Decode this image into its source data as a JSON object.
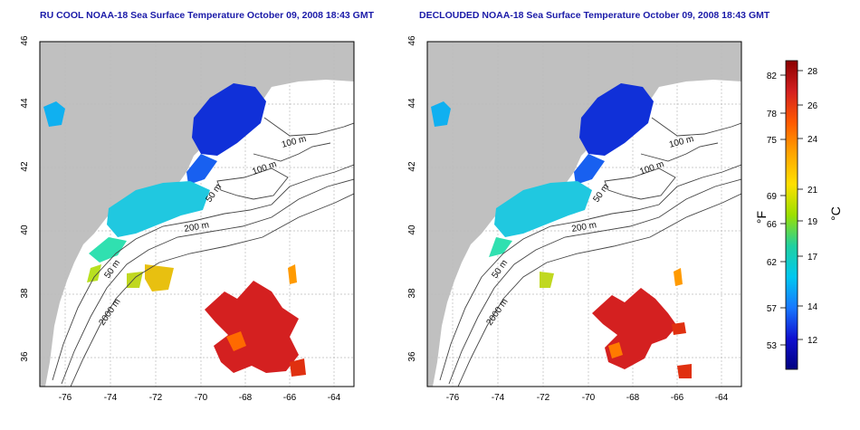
{
  "panels": [
    {
      "title": "RU COOL NOAA-18 Sea Surface Temperature October 09, 2008 18:43 GMT",
      "x_ticks": [
        "-76",
        "-74",
        "-72",
        "-70",
        "-68",
        "-66",
        "-64"
      ],
      "y_ticks": [
        "46",
        "44",
        "42",
        "40",
        "38",
        "36"
      ],
      "contour_labels": [
        "100 m",
        "100 m",
        "50 m",
        "200 m",
        "50 m",
        "2000 m"
      ]
    },
    {
      "title": "DECLOUDED NOAA-18 Sea Surface Temperature October 09, 2008 18:43 GMT",
      "x_ticks": [
        "-76",
        "-74",
        "-72",
        "-70",
        "-68",
        "-66",
        "-64"
      ],
      "y_ticks": [
        "46",
        "44",
        "42",
        "40",
        "38",
        "36"
      ],
      "contour_labels": [
        "100 m",
        "100 m",
        "50 m",
        "200 m",
        "50 m",
        "2000 m"
      ]
    }
  ],
  "colorbar": {
    "f_label": "°F",
    "c_label": "°C",
    "f_ticks": [
      "82",
      "78",
      "75",
      "69",
      "66",
      "62",
      "57",
      "53"
    ],
    "c_ticks": [
      "28",
      "26",
      "24",
      "21",
      "19",
      "17",
      "14",
      "12"
    ],
    "colors": [
      "#8b0000",
      "#d42020",
      "#ff5a00",
      "#ffa500",
      "#ffe000",
      "#9be000",
      "#20d0a0",
      "#00c8f0",
      "#1878ff",
      "#1010d0",
      "#000080"
    ]
  },
  "colors": {
    "land": "#c0c0c0",
    "ocean": "#ffffff",
    "title": "#1a1aa8",
    "grid": "#bbbbbb"
  }
}
